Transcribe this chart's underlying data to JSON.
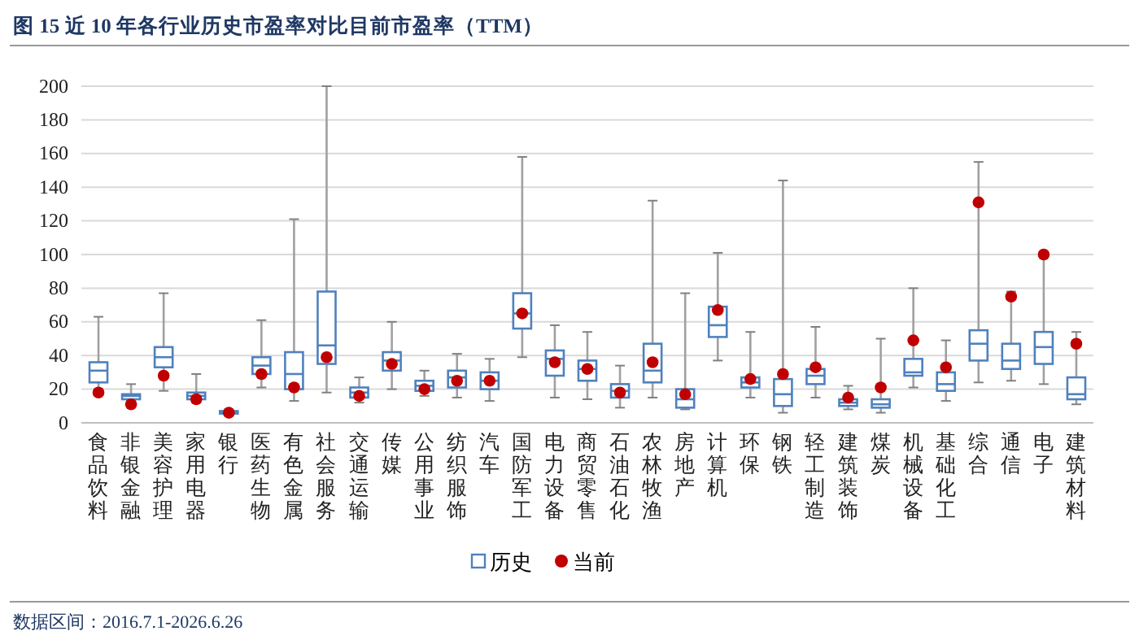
{
  "chart_data": {
    "type": "box",
    "title": "图 15 近 10 年各行业历史市盈率对比目前市盈率（TTM）",
    "categories": [
      "食品饮料",
      "非银金融",
      "美容护理",
      "家用电器",
      "银行",
      "医药生物",
      "有色金属",
      "社会服务",
      "交通运输",
      "传媒",
      "公用事业",
      "纺织服饰",
      "汽车",
      "国防军工",
      "电力设备",
      "商贸零售",
      "石油石化",
      "农林牧渔",
      "房地产",
      "计算机",
      "环保",
      "钢铁",
      "轻工制造",
      "建筑装饰",
      "煤炭",
      "机械设备",
      "基础化工",
      "综合",
      "通信",
      "电子",
      "建筑材料"
    ],
    "ylim": [
      0,
      200
    ],
    "yticks": [
      0,
      20,
      40,
      60,
      80,
      100,
      120,
      140,
      160,
      180,
      200
    ],
    "grid": "y",
    "legend": "bottom",
    "series": [
      {
        "name": "历史",
        "type": "box",
        "color": "#4f81bd",
        "boxes": [
          {
            "low": 20,
            "q1": 24,
            "median": 31,
            "q3": 36,
            "high": 63
          },
          {
            "low": 13,
            "q1": 14,
            "median": 16,
            "q3": 17,
            "high": 23
          },
          {
            "low": 19,
            "q1": 33,
            "median": 39,
            "q3": 45,
            "high": 77
          },
          {
            "low": 12,
            "q1": 14,
            "median": 16,
            "q3": 18,
            "high": 29
          },
          {
            "low": 5,
            "q1": 5.5,
            "median": 6,
            "q3": 7,
            "high": 8
          },
          {
            "low": 21,
            "q1": 29,
            "median": 34,
            "q3": 39,
            "high": 61
          },
          {
            "low": 13,
            "q1": 20,
            "median": 29,
            "q3": 42,
            "high": 121
          },
          {
            "low": 18,
            "q1": 35,
            "median": 46,
            "q3": 78,
            "high": 200
          },
          {
            "low": 12,
            "q1": 15,
            "median": 18,
            "q3": 21,
            "high": 27
          },
          {
            "low": 20,
            "q1": 31,
            "median": 37,
            "q3": 42,
            "high": 60
          },
          {
            "low": 16,
            "q1": 19,
            "median": 22,
            "q3": 25,
            "high": 31
          },
          {
            "low": 15,
            "q1": 21,
            "median": 27,
            "q3": 31,
            "high": 41
          },
          {
            "low": 13,
            "q1": 20,
            "median": 25,
            "q3": 30,
            "high": 38
          },
          {
            "low": 39,
            "q1": 56,
            "median": 65,
            "q3": 77,
            "high": 158
          },
          {
            "low": 15,
            "q1": 28,
            "median": 38,
            "q3": 43,
            "high": 58
          },
          {
            "low": 14,
            "q1": 25,
            "median": 32,
            "q3": 37,
            "high": 54
          },
          {
            "low": 9,
            "q1": 15,
            "median": 19,
            "q3": 23,
            "high": 34
          },
          {
            "low": 15,
            "q1": 24,
            "median": 31,
            "q3": 47,
            "high": 132
          },
          {
            "low": 8,
            "q1": 9,
            "median": 14,
            "q3": 20,
            "high": 77
          },
          {
            "low": 37,
            "q1": 51,
            "median": 58,
            "q3": 69,
            "high": 101
          },
          {
            "low": 15,
            "q1": 21,
            "median": 24,
            "q3": 27,
            "high": 54
          },
          {
            "low": 6,
            "q1": 10,
            "median": 17,
            "q3": 26,
            "high": 144
          },
          {
            "low": 15,
            "q1": 23,
            "median": 28,
            "q3": 32,
            "high": 57
          },
          {
            "low": 8,
            "q1": 10,
            "median": 12,
            "q3": 14,
            "high": 22
          },
          {
            "low": 6,
            "q1": 9,
            "median": 11,
            "q3": 14,
            "high": 50
          },
          {
            "low": 21,
            "q1": 28,
            "median": 30,
            "q3": 38,
            "high": 80
          },
          {
            "low": 13,
            "q1": 19,
            "median": 23,
            "q3": 30,
            "high": 49
          },
          {
            "low": 24,
            "q1": 37,
            "median": 47,
            "q3": 55,
            "high": 155
          },
          {
            "low": 25,
            "q1": 32,
            "median": 37,
            "q3": 47,
            "high": 78
          },
          {
            "low": 23,
            "q1": 35,
            "median": 45,
            "q3": 54,
            "high": 100
          },
          {
            "low": 11,
            "q1": 14,
            "median": 17,
            "q3": 27,
            "high": 54
          }
        ]
      },
      {
        "name": "当前",
        "type": "scatter",
        "color": "#c00000",
        "marker": "circle",
        "x": [
          "食品饮料",
          "非银金融",
          "美容护理",
          "家用电器",
          "银行",
          "医药生物",
          "有色金属",
          "社会服务",
          "交通运输",
          "传媒",
          "公用事业",
          "纺织服饰",
          "汽车",
          "国防军工",
          "电力设备",
          "商贸零售",
          "石油石化",
          "农林牧渔",
          "房地产",
          "计算机",
          "环保",
          "钢铁",
          "轻工制造",
          "建筑装饰",
          "煤炭",
          "机械设备",
          "基础化工",
          "综合",
          "通信",
          "电子",
          "建筑材料"
        ],
        "values": [
          18,
          11,
          28,
          14,
          6,
          29,
          21,
          39,
          16,
          35,
          20,
          25,
          25,
          65,
          36,
          32,
          18,
          36,
          17,
          67,
          26,
          29,
          33,
          15,
          21,
          49,
          33,
          131,
          75,
          100,
          47
        ]
      }
    ],
    "annotations": [
      "数据区间：2016.7.1-2026.6.26"
    ]
  }
}
